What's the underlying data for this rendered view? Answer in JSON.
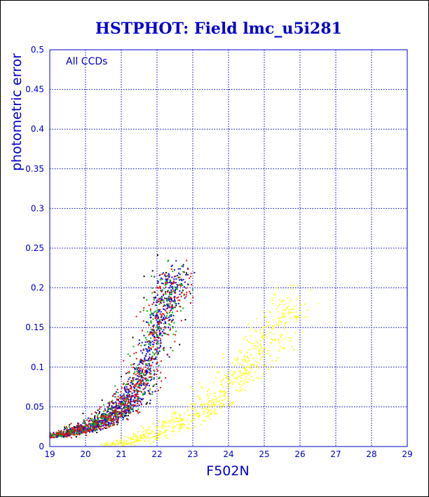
{
  "chart_data": {
    "type": "scatter",
    "title": "HSTPHOT: Field lmc_u5i281",
    "xlabel": "F502N",
    "ylabel": "photometric error",
    "annotation": "All CCDs",
    "xlim": [
      19,
      29
    ],
    "ylim": [
      0,
      0.5
    ],
    "x_ticks": [
      "19",
      "20",
      "21",
      "22",
      "23",
      "24",
      "25",
      "26",
      "27",
      "28",
      "29"
    ],
    "y_ticks": [
      "0",
      "0.05",
      "0.1",
      "0.15",
      "0.2",
      "0.25",
      "0.3",
      "0.35",
      "0.4",
      "0.45",
      "0.5"
    ],
    "grid": true,
    "colors": {
      "text": "#0000cc",
      "grid": "#0000cc",
      "blue": "#1010d0",
      "green": "#10b010",
      "red": "#e01010",
      "black": "#000000",
      "yellow": "#ffff20"
    },
    "series": [
      {
        "color_key": "blue",
        "envelope": [
          [
            19.0,
            0.012
          ],
          [
            19.5,
            0.016
          ],
          [
            20.0,
            0.022
          ],
          [
            20.5,
            0.032
          ],
          [
            21.0,
            0.048
          ],
          [
            21.3,
            0.064
          ],
          [
            21.6,
            0.088
          ],
          [
            21.8,
            0.112
          ],
          [
            22.0,
            0.142
          ],
          [
            22.2,
            0.172
          ],
          [
            22.4,
            0.2
          ],
          [
            22.6,
            0.215
          ]
        ],
        "spread_mag": 0.22,
        "count": 900
      },
      {
        "color_key": "green",
        "envelope": [
          [
            19.0,
            0.012
          ],
          [
            19.5,
            0.016
          ],
          [
            20.0,
            0.022
          ],
          [
            20.5,
            0.032
          ],
          [
            21.0,
            0.048
          ],
          [
            21.3,
            0.064
          ],
          [
            21.6,
            0.088
          ],
          [
            21.8,
            0.112
          ],
          [
            22.0,
            0.142
          ],
          [
            22.2,
            0.172
          ],
          [
            22.4,
            0.2
          ],
          [
            22.6,
            0.215
          ]
        ],
        "spread_mag": 0.25,
        "count": 420
      },
      {
        "color_key": "red",
        "envelope": [
          [
            19.0,
            0.012
          ],
          [
            19.5,
            0.016
          ],
          [
            20.0,
            0.022
          ],
          [
            20.5,
            0.032
          ],
          [
            21.0,
            0.048
          ],
          [
            21.3,
            0.064
          ],
          [
            21.6,
            0.088
          ],
          [
            21.8,
            0.112
          ],
          [
            22.0,
            0.142
          ],
          [
            22.2,
            0.172
          ],
          [
            22.4,
            0.2
          ],
          [
            22.6,
            0.215
          ]
        ],
        "spread_mag": 0.28,
        "count": 520
      },
      {
        "color_key": "black",
        "envelope": [
          [
            19.0,
            0.012
          ],
          [
            19.5,
            0.016
          ],
          [
            20.0,
            0.022
          ],
          [
            20.5,
            0.032
          ],
          [
            21.0,
            0.048
          ],
          [
            21.3,
            0.064
          ],
          [
            21.6,
            0.088
          ],
          [
            21.8,
            0.112
          ],
          [
            22.0,
            0.142
          ],
          [
            22.2,
            0.172
          ],
          [
            22.4,
            0.2
          ],
          [
            22.6,
            0.215
          ]
        ],
        "spread_mag": 0.35,
        "count": 160
      },
      {
        "color_key": "yellow",
        "envelope": [
          [
            20.5,
            0.001
          ],
          [
            21.0,
            0.004
          ],
          [
            21.5,
            0.009
          ],
          [
            22.0,
            0.018
          ],
          [
            22.5,
            0.028
          ],
          [
            23.0,
            0.04
          ],
          [
            23.5,
            0.055
          ],
          [
            24.0,
            0.075
          ],
          [
            24.5,
            0.1
          ],
          [
            25.0,
            0.13
          ],
          [
            25.5,
            0.165
          ],
          [
            25.8,
            0.19
          ]
        ],
        "spread_mag": 0.35,
        "count": 650
      }
    ]
  }
}
